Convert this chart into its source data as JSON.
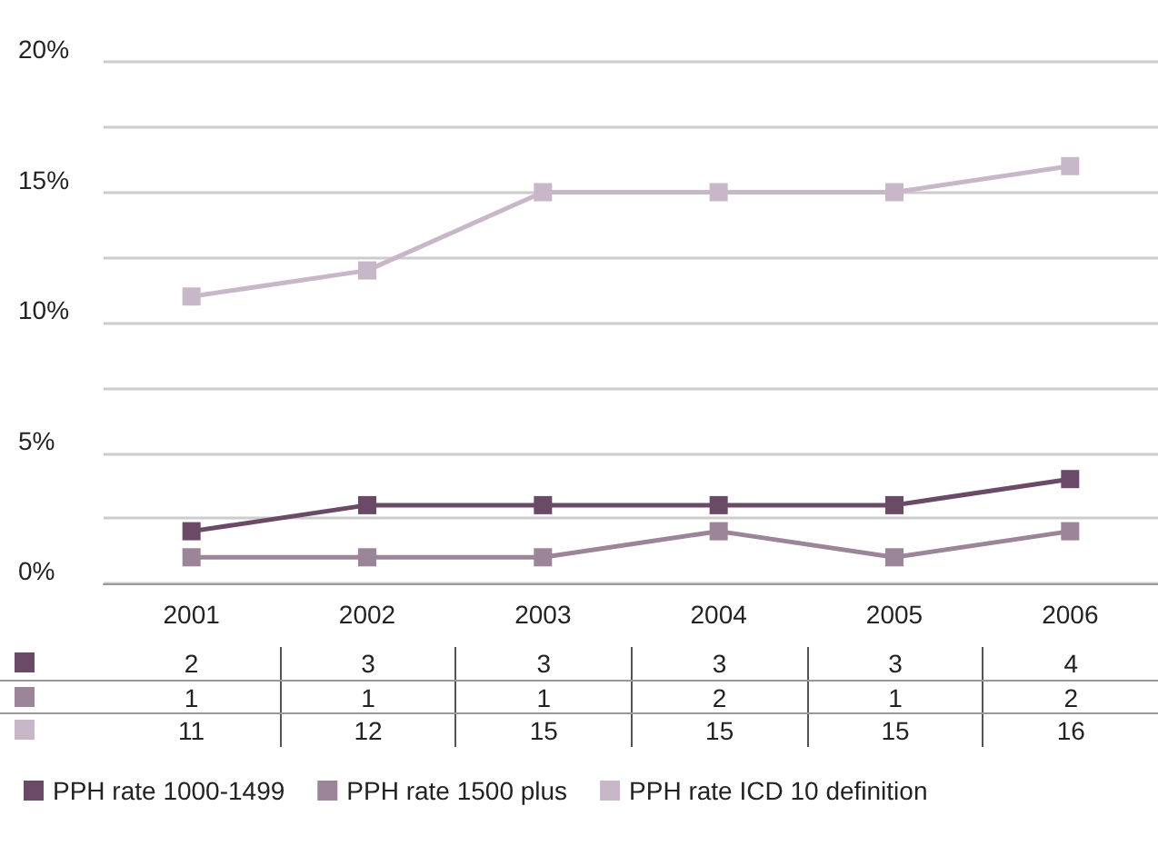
{
  "chart_data": {
    "type": "line",
    "categories": [
      "2001",
      "2002",
      "2003",
      "2004",
      "2005",
      "2006"
    ],
    "series": [
      {
        "name": "PPH rate 1000-1499",
        "color": "#6b4a68",
        "values": [
          2,
          3,
          3,
          3,
          3,
          4
        ]
      },
      {
        "name": "PPH rate 1500 plus",
        "color": "#9c8499",
        "values": [
          1,
          1,
          1,
          2,
          1,
          2
        ]
      },
      {
        "name": "PPH rate ICD 10 definition",
        "color": "#c8b7c8",
        "values": [
          11,
          12,
          15,
          15,
          15,
          16
        ]
      }
    ],
    "ylim": [
      0,
      20
    ],
    "yticks": [
      {
        "value": 0,
        "label": "0%"
      },
      {
        "value": 2.5,
        "label": null
      },
      {
        "value": 5,
        "label": "5%"
      },
      {
        "value": 7.5,
        "label": null
      },
      {
        "value": 10,
        "label": "10%"
      },
      {
        "value": 12.5,
        "label": null
      },
      {
        "value": 15,
        "label": "15%"
      },
      {
        "value": 17.5,
        "label": null
      },
      {
        "value": 20,
        "label": "20%"
      }
    ],
    "grid": "y",
    "legend": "bottom",
    "marker": "square",
    "line_style": "solid",
    "data_labels": true
  }
}
